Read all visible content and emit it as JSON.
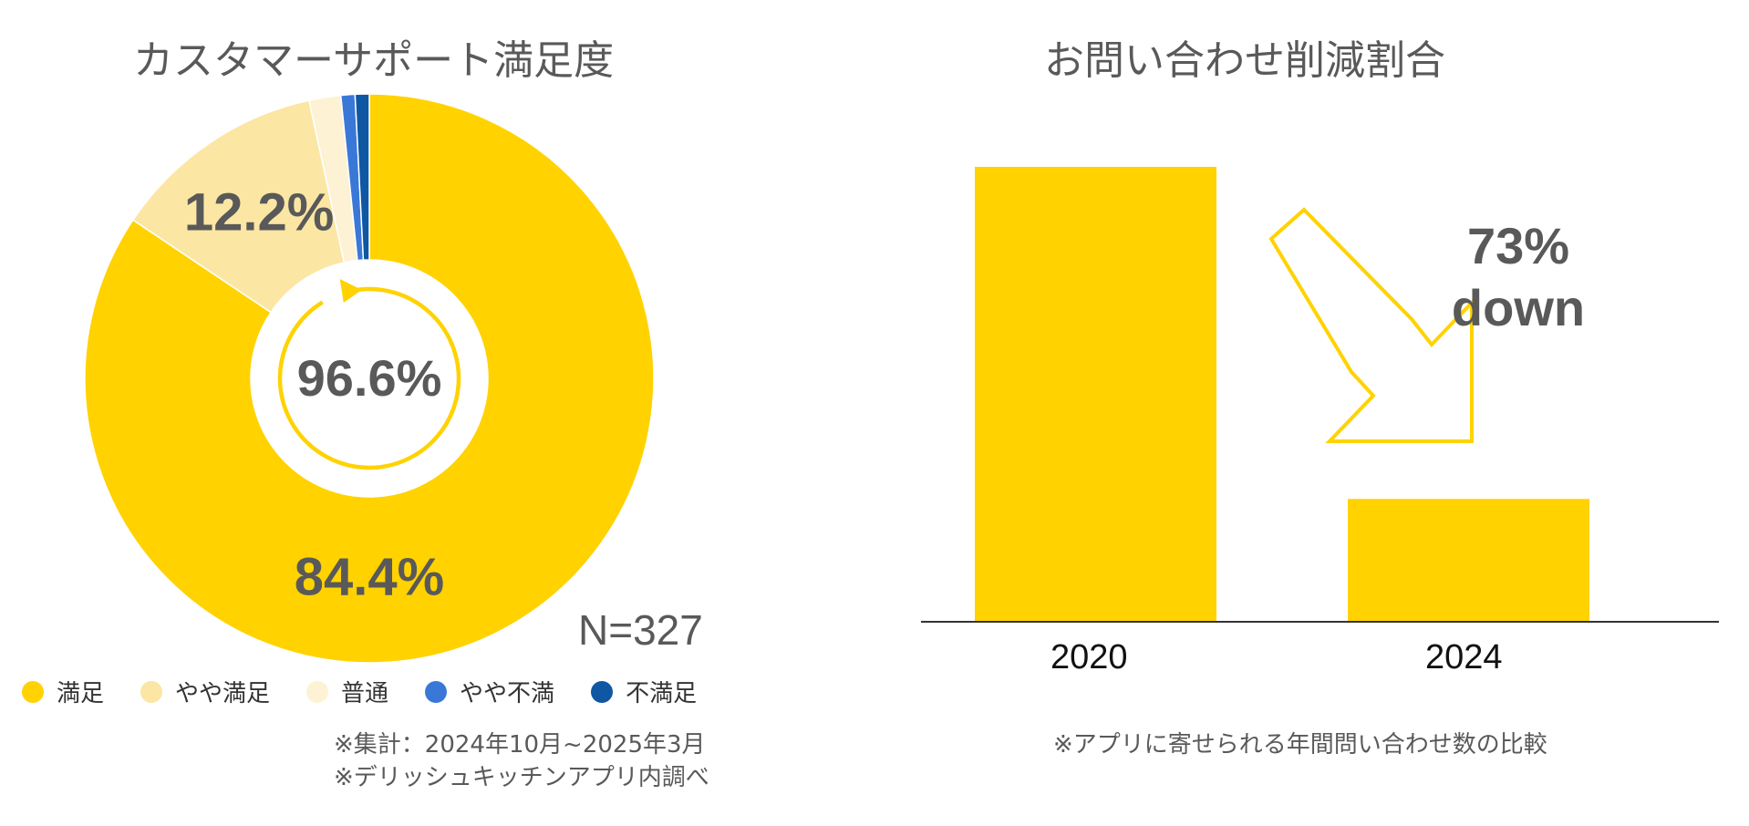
{
  "chart_data": [
    {
      "type": "pie",
      "title": "カスタマーサポート満足度",
      "categories": [
        "満足",
        "やや満足",
        "普通",
        "やや不満",
        "不満足"
      ],
      "values": [
        84.4,
        12.2,
        1.8,
        0.8,
        0.8
      ],
      "labels": [
        "84.4%",
        "12.2%",
        "",
        "",
        ""
      ],
      "colors": [
        "#FFD200",
        "#FCE6A3",
        "#FDF2D3",
        "#3A78D8",
        "#0F57A3"
      ],
      "center_label": "96.6%",
      "annotation": "N=327",
      "legend_position": "bottom",
      "notes": [
        "※集計：2024年10月~2025年3月",
        "※デリッシュキッチンアプリ内調べ"
      ]
    },
    {
      "type": "bar",
      "title": "お問い合わせ削減割合",
      "categories": [
        "2020",
        "2024"
      ],
      "values": [
        100,
        27
      ],
      "bar_color": "#FFD200",
      "annotation": [
        "73%",
        "down"
      ],
      "note": "※アプリに寄せられる年間問い合わせ数の比較"
    }
  ]
}
